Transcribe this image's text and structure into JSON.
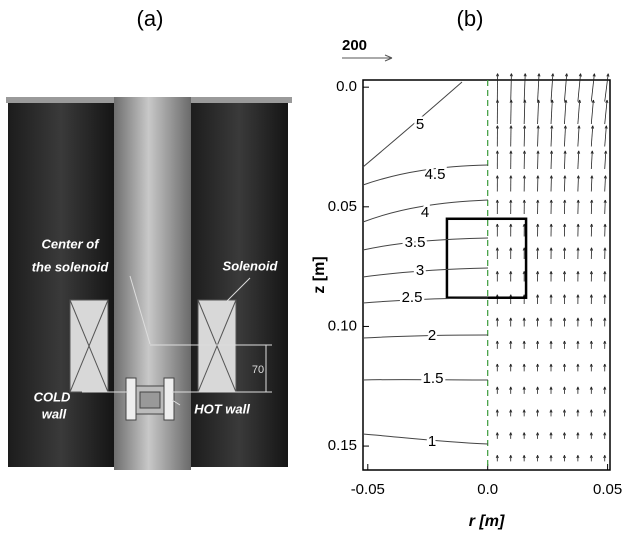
{
  "figure_a": {
    "panel_label": "(a)",
    "center_label": [
      "Center of",
      "the solenoid"
    ],
    "solenoid_label": "Solenoid",
    "dimension_label": "70",
    "cold_label": [
      "COLD",
      "wall"
    ],
    "hot_label": "HOT wall"
  },
  "chart_data": {
    "type": "contour",
    "panel_label": "(b)",
    "xlabel": "r [m]",
    "ylabel": "z [m]",
    "xlim": [
      -0.052,
      0.051
    ],
    "ylim": [
      -0.003,
      0.16
    ],
    "y_inverted": true,
    "xticks": [
      -0.05,
      {
        "value": 0,
        "label": "0.0"
      },
      0.05
    ],
    "yticks": [
      {
        "value": 0,
        "label": "0.0"
      },
      0.05,
      {
        "value": 0.1,
        "label": "0.10"
      },
      0.15
    ],
    "levels": [
      5,
      4.5,
      4,
      3.5,
      3,
      2.5,
      2,
      1.5,
      1
    ],
    "vector_scale": 200
  }
}
